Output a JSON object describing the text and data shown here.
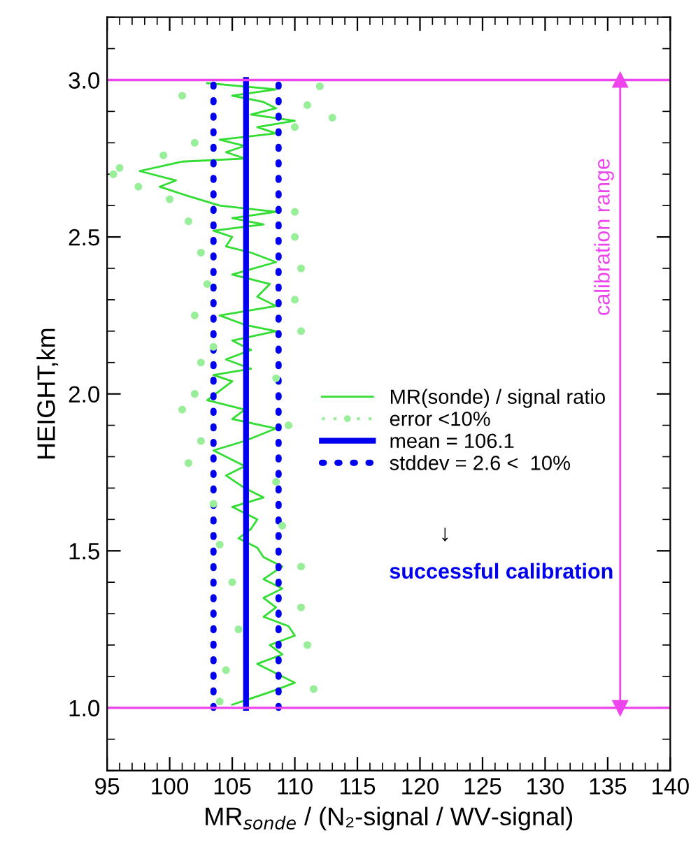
{
  "chart_data": {
    "type": "line",
    "xlabel": "MR$_{sonde}$ / (N₂-signal / WV-signal)",
    "ylabel": "HEIGHT,km",
    "xlim": [
      95,
      140
    ],
    "xticks": [
      95,
      100,
      105,
      110,
      115,
      120,
      125,
      130,
      135,
      140
    ],
    "ylim": [
      0.8,
      3.2
    ],
    "yticks": [
      {
        "value": 1.0,
        "label": "1.0"
      },
      {
        "value": 1.5,
        "label": "1.5"
      },
      {
        "value": 2.0,
        "label": "2.0"
      },
      {
        "value": 2.5,
        "label": "2.5"
      },
      {
        "value": 3.0,
        "label": "3.0"
      }
    ],
    "grid": false,
    "legend": "right",
    "series": [
      {
        "name": "MR(sonde) / signal ratio",
        "color": "#33dd33",
        "line_style": "solid",
        "x": [
          103,
          108.5,
          105,
          107.5,
          108.5,
          106.5,
          110.0,
          107,
          108.5,
          104,
          106,
          104.5,
          106,
          101,
          97.6,
          100.5,
          99.2,
          101.5,
          104,
          108.5,
          105,
          107.5,
          103.5,
          105,
          104.5,
          106.5,
          108.5,
          105,
          108,
          107,
          108.5,
          104,
          106,
          108.5,
          105,
          106.5,
          104.5,
          106.5,
          103.5,
          105,
          104,
          103,
          106,
          105,
          108.5,
          106,
          103.5,
          104.5,
          106,
          104.5,
          106,
          107.5,
          105,
          107,
          106.5,
          105.5,
          107,
          107.5,
          109,
          107.5,
          109,
          107.5,
          108.5,
          107.5,
          109.5,
          110,
          108,
          109,
          107,
          108.5,
          110,
          108,
          106.5,
          105
        ],
        "values": [
          2.99,
          2.97,
          2.95,
          2.93,
          2.91,
          2.89,
          2.87,
          2.85,
          2.83,
          2.81,
          2.79,
          2.77,
          2.75,
          2.74,
          2.71,
          2.68,
          2.66,
          2.63,
          2.6,
          2.58,
          2.56,
          2.54,
          2.52,
          2.5,
          2.47,
          2.45,
          2.42,
          2.38,
          2.35,
          2.31,
          2.28,
          2.25,
          2.22,
          2.2,
          2.17,
          2.14,
          2.11,
          2.08,
          2.06,
          2.04,
          2.01,
          1.98,
          1.95,
          1.92,
          1.89,
          1.85,
          1.82,
          1.8,
          1.77,
          1.74,
          1.7,
          1.67,
          1.64,
          1.6,
          1.57,
          1.54,
          1.51,
          1.48,
          1.45,
          1.41,
          1.38,
          1.35,
          1.32,
          1.29,
          1.26,
          1.23,
          1.2,
          1.17,
          1.14,
          1.11,
          1.08,
          1.05,
          1.03,
          1.01
        ]
      },
      {
        "name": "error <10%",
        "color": "#99ee99",
        "type": "scatter",
        "marker": "circle",
        "x": [
          112,
          101,
          111,
          113,
          110,
          102,
          99.5,
          96,
          95.5,
          97.5,
          100,
          110,
          101.5,
          110,
          102.5,
          110.5,
          103,
          110,
          102,
          110.5,
          103.5,
          102.5,
          108.5,
          102,
          101,
          109.5,
          102.5,
          101.5,
          108.5,
          103.5,
          109,
          104,
          110.5,
          105,
          110.5,
          105.5,
          111,
          104.5,
          111.5,
          104
        ],
        "values": [
          2.98,
          2.95,
          2.92,
          2.88,
          2.85,
          2.8,
          2.76,
          2.72,
          2.7,
          2.66,
          2.62,
          2.58,
          2.55,
          2.5,
          2.45,
          2.4,
          2.35,
          2.3,
          2.25,
          2.2,
          2.15,
          2.1,
          2.05,
          2.0,
          1.95,
          1.9,
          1.85,
          1.78,
          1.72,
          1.65,
          1.58,
          1.52,
          1.45,
          1.4,
          1.32,
          1.25,
          1.2,
          1.12,
          1.06,
          1.02
        ]
      },
      {
        "name": "mean = 106.1",
        "color": "#0000ee",
        "type": "line",
        "line_style": "solid",
        "x": [
          106.1,
          106.1
        ],
        "values": [
          1.0,
          3.0
        ]
      },
      {
        "name": "stddev = 2.6 <  10%",
        "color": "#0000ee",
        "type": "line",
        "line_style": "dotted",
        "x": [
          103.5,
          103.5
        ],
        "values": [
          1.0,
          3.0
        ]
      },
      {
        "color": "#0000ee",
        "type": "line",
        "line_style": "dotted",
        "x": [
          108.7,
          108.7
        ],
        "values": [
          1.0,
          3.0
        ]
      },
      {
        "color": "#ee44ee",
        "type": "line",
        "line_style": "solid",
        "marker": "triangle",
        "x": [
          136,
          136
        ],
        "values": [
          1.0,
          3.0
        ]
      }
    ],
    "ref_lines": [
      {
        "axis": "y",
        "value": 1.0,
        "color": "#ee44ee"
      },
      {
        "axis": "y",
        "value": 3.0,
        "color": "#ee44ee"
      }
    ],
    "annotations": [
      "calibration range",
      "↓",
      "successful calibration"
    ]
  }
}
